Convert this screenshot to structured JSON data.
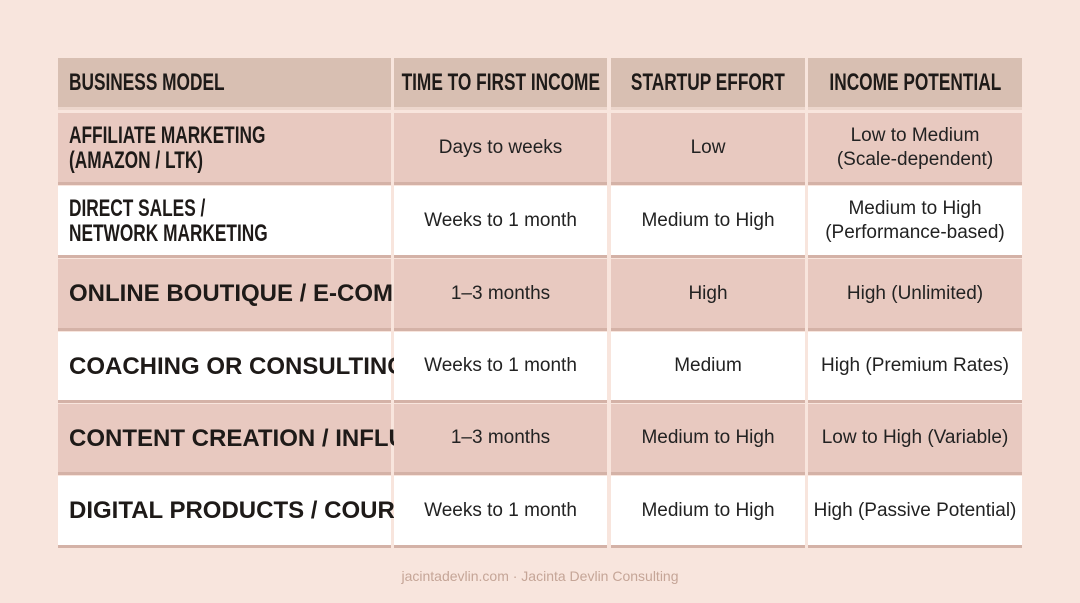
{
  "table": {
    "header": [
      "BUSINESS MODEL",
      "TIME TO FIRST INCOME",
      "STARTUP EFFORT",
      "INCOME POTENTIAL"
    ],
    "rows": [
      [
        [
          "AFFILIATE MARKETING",
          "(AMAZON / LTK)"
        ],
        "Days to weeks",
        "Low",
        [
          "Low to Medium",
          "(Scale-dependent)"
        ]
      ],
      [
        [
          "DIRECT SALES /",
          "NETWORK MARKETING"
        ],
        "Weeks to 1 month",
        "Medium to High",
        [
          "Medium to High",
          "(Performance-based)"
        ]
      ],
      [
        "ONLINE BOUTIQUE / E-COMMERCE",
        "1–3 months",
        "High",
        "High (Unlimited)"
      ],
      [
        "COACHING OR CONSULTING SERVICES",
        "Weeks to 1 month",
        "Medium",
        "High (Premium Rates)"
      ],
      [
        "CONTENT CREATION / INFLUENCER",
        "1–3 months",
        "Medium to High",
        "Low to High (Variable)"
      ],
      [
        "DIGITAL PRODUCTS / COURSES",
        "Weeks to 1 month",
        "Medium to High",
        "High (Passive Potential)"
      ]
    ]
  },
  "footer": "jacintadevlin.com · Jacinta Devlin Consulting"
}
